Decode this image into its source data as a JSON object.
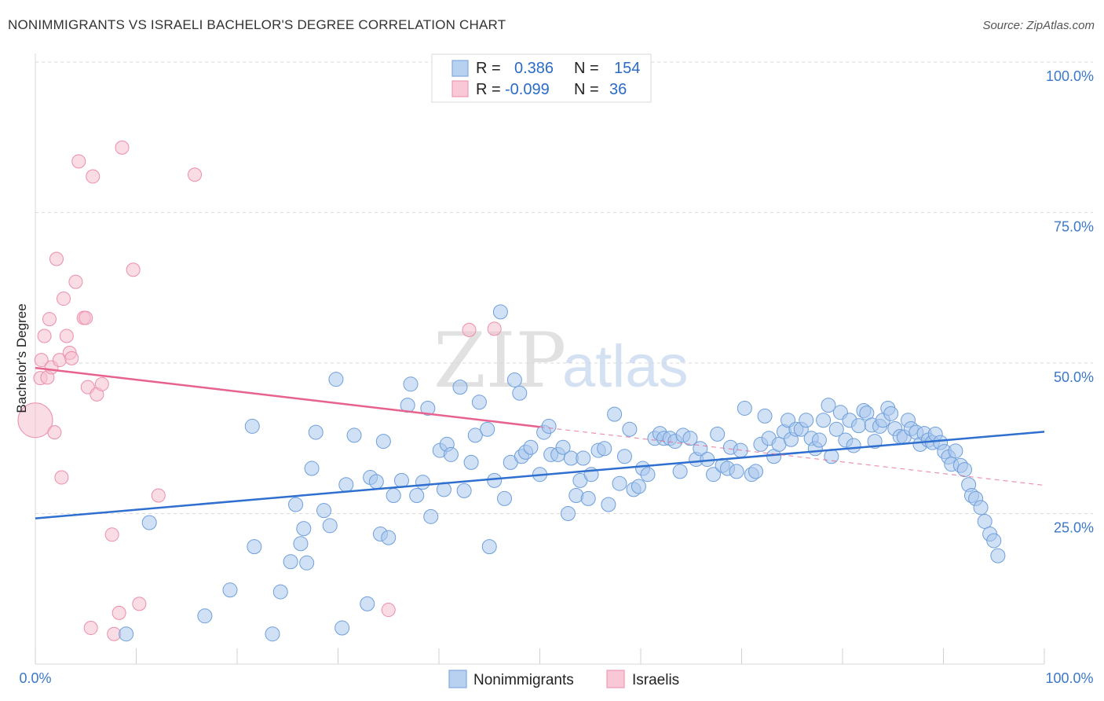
{
  "header": {
    "title": "NONIMMIGRANTS VS ISRAELI BACHELOR'S DEGREE CORRELATION CHART",
    "source": "Source: ZipAtlas.com"
  },
  "watermark": {
    "zip": "ZIP",
    "atlas": "atlas"
  },
  "legend": {
    "row1": {
      "r_label": "R =",
      "r_value": "0.386",
      "n_label": "N =",
      "n_value": "154"
    },
    "row2": {
      "r_label": "R =",
      "r_value": "-0.099",
      "n_label": "N =",
      "n_value": "36"
    }
  },
  "bottom_legend": {
    "series1": "Nonimmigrants",
    "series2": "Israelis"
  },
  "colors": {
    "blue_fill": "#a9c6ec",
    "blue_stroke": "#6e9fdc",
    "blue_line": "#2f6fcf",
    "pink_fill": "#f6bfd0",
    "pink_stroke": "#ec8eab",
    "pink_line": "#e8628e",
    "grid": "#d9d9d9",
    "tick_text": "#3b78c9"
  },
  "chart_data": {
    "type": "scatter",
    "xlabel": "",
    "ylabel": "Bachelor's Degree",
    "xlim": [
      0,
      100
    ],
    "ylim": [
      0,
      100
    ],
    "x_tick_labels": [
      "0.0%",
      "100.0%"
    ],
    "y_tick_labels": [
      "25.0%",
      "50.0%",
      "75.0%",
      "100.0%"
    ],
    "y_ticks": [
      25,
      50,
      75,
      100
    ],
    "legend_position": "top-center",
    "series": [
      {
        "name": "Nonimmigrants",
        "color": "#6e9fdc",
        "trend": {
          "x": [
            0,
            100
          ],
          "y": [
            24.2,
            38.6
          ]
        },
        "points": [
          [
            9,
            5
          ],
          [
            11.3,
            23.5
          ],
          [
            16.8,
            8
          ],
          [
            19.3,
            12.3
          ],
          [
            21.5,
            39.5
          ],
          [
            21.7,
            19.5
          ],
          [
            23.5,
            5
          ],
          [
            24.3,
            12
          ],
          [
            25.3,
            17
          ],
          [
            25.8,
            26.5
          ],
          [
            26.3,
            20
          ],
          [
            26.6,
            22.5
          ],
          [
            26.9,
            16.8
          ],
          [
            27.4,
            32.5
          ],
          [
            27.8,
            38.5
          ],
          [
            28.6,
            25.5
          ],
          [
            29.2,
            23
          ],
          [
            29.8,
            47.3
          ],
          [
            30.4,
            6
          ],
          [
            30.8,
            29.8
          ],
          [
            31.6,
            38
          ],
          [
            32.9,
            10
          ],
          [
            33.2,
            31
          ],
          [
            33.8,
            30.3
          ],
          [
            34.2,
            21.6
          ],
          [
            34.5,
            37
          ],
          [
            35,
            21
          ],
          [
            35.5,
            28
          ],
          [
            36.3,
            30.5
          ],
          [
            36.9,
            43
          ],
          [
            37.2,
            46.5
          ],
          [
            37.8,
            28
          ],
          [
            38.4,
            30.2
          ],
          [
            38.9,
            42.5
          ],
          [
            39.2,
            24.5
          ],
          [
            40.1,
            35.5
          ],
          [
            40.5,
            29
          ],
          [
            40.8,
            36.5
          ],
          [
            41.2,
            34.8
          ],
          [
            42.1,
            46
          ],
          [
            42.5,
            28.8
          ],
          [
            43.2,
            33.5
          ],
          [
            43.6,
            38
          ],
          [
            44,
            43.5
          ],
          [
            44.8,
            39
          ],
          [
            45,
            19.5
          ],
          [
            45.5,
            30.5
          ],
          [
            46.1,
            58.5
          ],
          [
            46.5,
            27.5
          ],
          [
            47.1,
            33.5
          ],
          [
            47.5,
            47.2
          ],
          [
            48,
            45
          ],
          [
            48.2,
            34.5
          ],
          [
            48.6,
            35.2
          ],
          [
            49.1,
            36
          ],
          [
            50,
            31.5
          ],
          [
            50.4,
            38.5
          ],
          [
            50.9,
            39.5
          ],
          [
            51.1,
            34.8
          ],
          [
            51.8,
            34.8
          ],
          [
            52.3,
            36
          ],
          [
            52.8,
            25
          ],
          [
            53.1,
            34.2
          ],
          [
            53.6,
            28
          ],
          [
            54,
            30.5
          ],
          [
            54.3,
            34.2
          ],
          [
            54.8,
            27.5
          ],
          [
            55.1,
            31.5
          ],
          [
            55.8,
            35.5
          ],
          [
            56.4,
            35.8
          ],
          [
            56.8,
            26.5
          ],
          [
            57.4,
            41.5
          ],
          [
            57.9,
            30
          ],
          [
            58.4,
            34.5
          ],
          [
            58.9,
            39
          ],
          [
            59.3,
            29
          ],
          [
            59.8,
            29.5
          ],
          [
            60.2,
            32.5
          ],
          [
            60.7,
            31.5
          ],
          [
            61.4,
            37.5
          ],
          [
            61.9,
            38.3
          ],
          [
            62.3,
            37.5
          ],
          [
            62.9,
            37.5
          ],
          [
            63.4,
            37
          ],
          [
            63.9,
            32
          ],
          [
            64.2,
            38
          ],
          [
            64.9,
            37.5
          ],
          [
            65.5,
            34
          ],
          [
            65.9,
            35.8
          ],
          [
            66.6,
            34
          ],
          [
            67.2,
            31.5
          ],
          [
            67.6,
            38.2
          ],
          [
            68.1,
            33
          ],
          [
            68.6,
            32.5
          ],
          [
            68.9,
            36
          ],
          [
            69.5,
            32
          ],
          [
            69.9,
            35.5
          ],
          [
            70.3,
            42.5
          ],
          [
            71,
            31.5
          ],
          [
            71.4,
            32
          ],
          [
            71.9,
            36.5
          ],
          [
            72.3,
            41.2
          ],
          [
            72.7,
            37.5
          ],
          [
            73.2,
            34.5
          ],
          [
            73.7,
            36.5
          ],
          [
            74.2,
            38.6
          ],
          [
            74.6,
            40.5
          ],
          [
            74.9,
            37.3
          ],
          [
            75.4,
            39
          ],
          [
            75.9,
            39
          ],
          [
            76.4,
            40.5
          ],
          [
            76.9,
            37.5
          ],
          [
            77.3,
            35.8
          ],
          [
            77.7,
            37.2
          ],
          [
            78.1,
            40.5
          ],
          [
            78.6,
            43
          ],
          [
            78.9,
            34.5
          ],
          [
            79.4,
            39
          ],
          [
            79.8,
            41.8
          ],
          [
            80.3,
            37.2
          ],
          [
            80.7,
            40.5
          ],
          [
            81.1,
            36.3
          ],
          [
            81.6,
            39.6
          ],
          [
            82.1,
            42.1
          ],
          [
            82.4,
            41.7
          ],
          [
            82.9,
            39.7
          ],
          [
            83.2,
            37
          ],
          [
            83.7,
            39.5
          ],
          [
            84,
            40.5
          ],
          [
            84.5,
            42.5
          ],
          [
            84.8,
            41.6
          ],
          [
            85.2,
            39.1
          ],
          [
            85.7,
            37.8
          ],
          [
            86.1,
            37.7
          ],
          [
            86.5,
            40.5
          ],
          [
            86.8,
            39.1
          ],
          [
            87.3,
            38.5
          ],
          [
            87.7,
            36.5
          ],
          [
            88.1,
            38.3
          ],
          [
            88.5,
            37.2
          ],
          [
            88.9,
            36.8
          ],
          [
            89.2,
            38.2
          ],
          [
            89.7,
            36.8
          ],
          [
            90.1,
            35.3
          ],
          [
            90.5,
            34.4
          ],
          [
            90.8,
            33.2
          ],
          [
            91.2,
            35.4
          ],
          [
            91.7,
            33
          ],
          [
            92.1,
            32.3
          ],
          [
            92.5,
            29.8
          ],
          [
            92.8,
            28
          ],
          [
            93.2,
            27.5
          ],
          [
            93.7,
            26
          ],
          [
            94.1,
            23.7
          ],
          [
            94.6,
            21.6
          ],
          [
            95,
            20.5
          ],
          [
            95.4,
            18
          ]
        ]
      },
      {
        "name": "Israelis",
        "color": "#ec8eab",
        "trend": {
          "x": [
            0,
            50
          ],
          "y": [
            49.2,
            39.4
          ]
        },
        "trend_dashed": {
          "x": [
            50,
            100
          ],
          "y": [
            39.4,
            29.7
          ]
        },
        "points": [
          [
            0,
            40.5
          ],
          [
            0.5,
            47.5
          ],
          [
            0.6,
            50.5
          ],
          [
            0.9,
            54.5
          ],
          [
            1.2,
            47.6
          ],
          [
            1.4,
            57.3
          ],
          [
            1.6,
            49.3
          ],
          [
            1.9,
            38.5
          ],
          [
            2.1,
            67.3
          ],
          [
            2.4,
            50.5
          ],
          [
            2.6,
            31
          ],
          [
            2.8,
            60.7
          ],
          [
            3.1,
            54.5
          ],
          [
            3.4,
            51.7
          ],
          [
            3.6,
            50.8
          ],
          [
            4,
            63.5
          ],
          [
            4.3,
            83.5
          ],
          [
            4.8,
            57.5
          ],
          [
            5,
            57.5
          ],
          [
            5.2,
            46
          ],
          [
            5.5,
            6
          ],
          [
            5.7,
            81
          ],
          [
            6.1,
            44.8
          ],
          [
            6.6,
            46.5
          ],
          [
            7.6,
            21.5
          ],
          [
            7.8,
            5
          ],
          [
            8.3,
            8.5
          ],
          [
            8.6,
            85.8
          ],
          [
            9.7,
            65.5
          ],
          [
            10.3,
            10
          ],
          [
            12.2,
            28
          ],
          [
            15.8,
            81.3
          ],
          [
            35,
            9
          ],
          [
            43,
            55.5
          ],
          [
            45.5,
            55.7
          ]
        ]
      }
    ]
  }
}
